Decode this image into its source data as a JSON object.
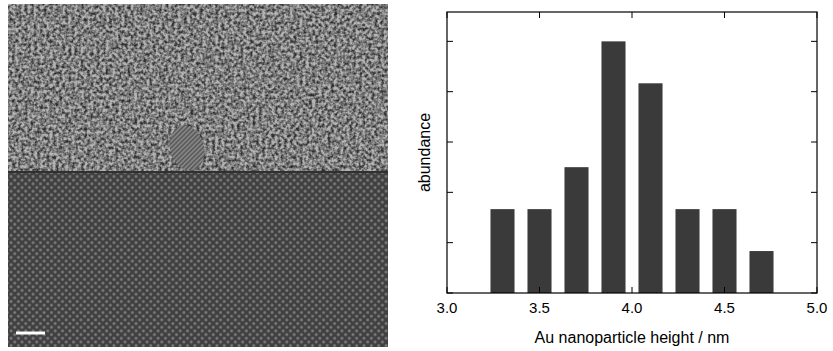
{
  "chart_data": {
    "type": "bar",
    "x_label": "Au nanoparticle height / nm",
    "y_label": "abundance",
    "x": [
      3.3,
      3.5,
      3.7,
      3.9,
      4.1,
      4.3,
      4.5,
      4.7
    ],
    "values": [
      2,
      2,
      3,
      6,
      5,
      2,
      2,
      1
    ],
    "color": "#3a3a3a",
    "xlim": [
      3.0,
      5.0
    ],
    "xticks": [
      {
        "value": 3.0,
        "label": "3.0"
      },
      {
        "value": 3.5,
        "label": "3.5"
      },
      {
        "value": 4.0,
        "label": "4.0"
      },
      {
        "value": 4.5,
        "label": "4.5"
      },
      {
        "value": 5.0,
        "label": "5.0"
      }
    ],
    "ylim": [
      0,
      6.7
    ],
    "yticks": [
      0,
      1.2,
      2.4,
      3.6,
      4.8,
      6.0
    ],
    "tick_labels": "x"
  }
}
